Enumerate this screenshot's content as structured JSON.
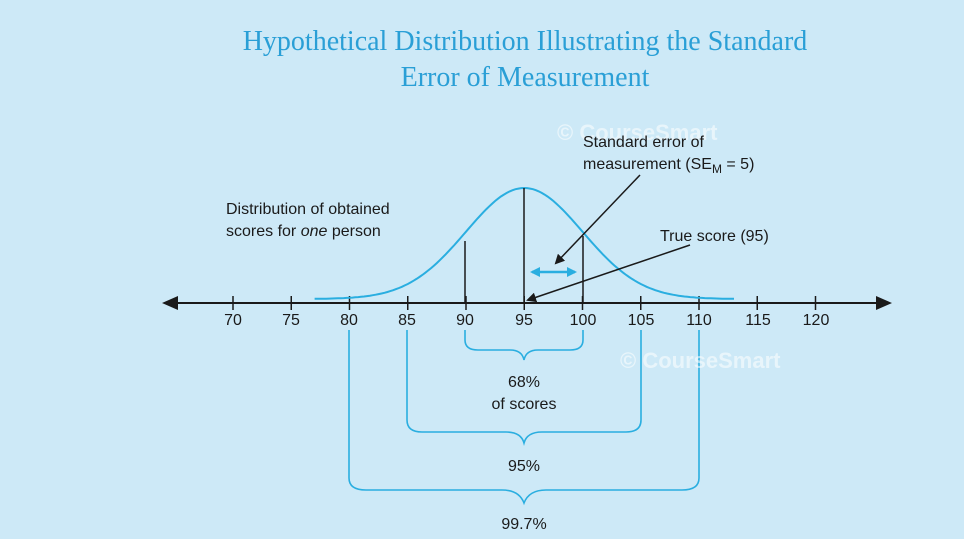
{
  "title_line1": "Hypothetical Distribution Illustrating the Standard",
  "title_line2": "Error of Measurement",
  "labels": {
    "distribution_line1": "Distribution of obtained",
    "distribution_line2_prefix": "scores for ",
    "distribution_line2_emph": "one",
    "distribution_line2_suffix": " person",
    "sem_line1": "Standard error of",
    "sem_line2_prefix": "measurement (SE",
    "sem_sub": "M",
    "sem_line2_suffix": " = 5)",
    "true_score": "True score (95)"
  },
  "axis_ticks": [
    "70",
    "75",
    "80",
    "85",
    "90",
    "95",
    "100",
    "105",
    "110",
    "115",
    "120"
  ],
  "brackets": {
    "b68_line1": "68%",
    "b68_line2": "of scores",
    "b95": "95%",
    "b997": "99.7%"
  },
  "watermark": "© CourseSmart",
  "colors": {
    "background": "#cde9f7",
    "title": "#2a9fd6",
    "curve": "#2aaee0",
    "arrow": "#2aaee0",
    "axis": "#1a1a1a"
  }
}
